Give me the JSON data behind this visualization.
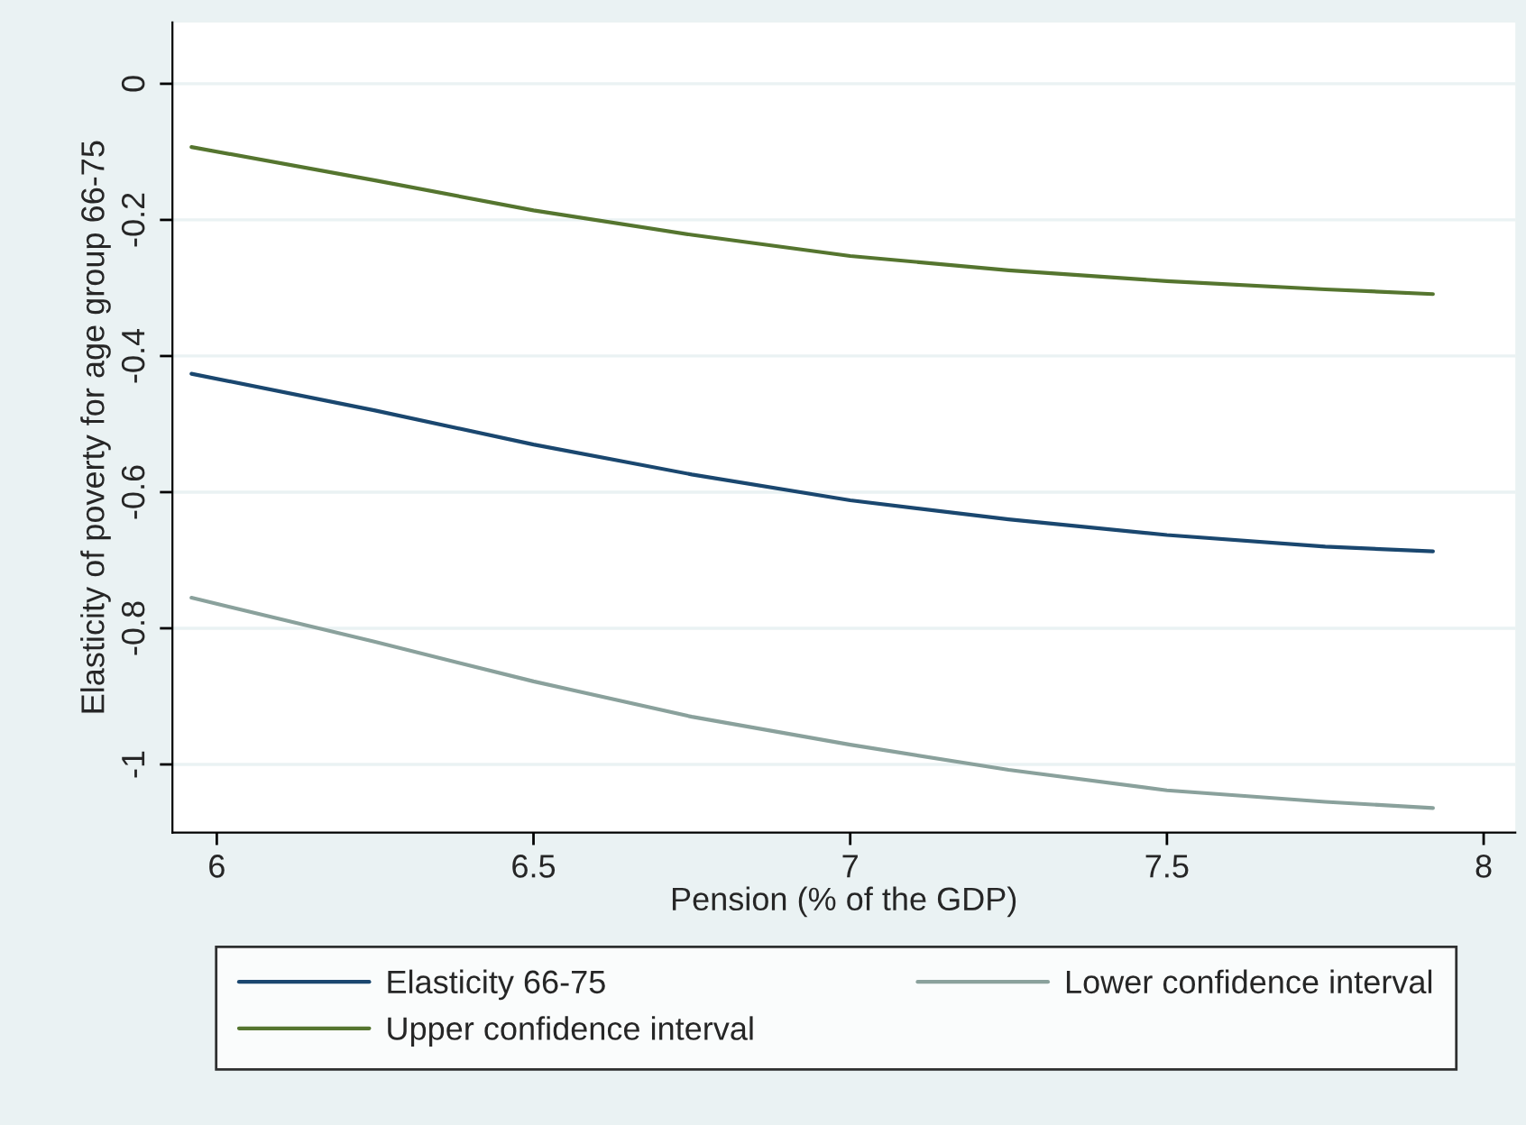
{
  "chart_data": {
    "type": "line",
    "xlabel": "Pension (% of the GDP)",
    "ylabel": "Elasticity of poverty for age group 66-75",
    "x": [
      5.96,
      6.25,
      6.5,
      6.75,
      7,
      7.25,
      7.5,
      7.75,
      7.92
    ],
    "series": [
      {
        "name": "Elasticity 66-75",
        "color": "#1a476f",
        "values": [
          -0.426,
          -0.48,
          -0.53,
          -0.574,
          -0.612,
          -0.64,
          -0.663,
          -0.68,
          -0.687
        ]
      },
      {
        "name": "Upper confidence interval",
        "color": "#55752f",
        "values": [
          -0.093,
          -0.142,
          -0.186,
          -0.222,
          -0.253,
          -0.274,
          -0.29,
          -0.302,
          -0.309
        ]
      },
      {
        "name": "Lower confidence interval",
        "color": "#8aa19c",
        "values": [
          -0.755,
          -0.82,
          -0.878,
          -0.93,
          -0.971,
          -1.008,
          -1.038,
          -1.055,
          -1.064
        ]
      }
    ],
    "xlim": [
      5.93,
      8.05
    ],
    "xticks": [
      6,
      6.5,
      7,
      7.5,
      8
    ],
    "ylim": [
      -1.1,
      0.09
    ],
    "yticks": [
      -1,
      -0.8,
      -0.6,
      -0.4,
      -0.2,
      0
    ],
    "grid": "y",
    "legend": "bottom",
    "line_style": "solid"
  }
}
